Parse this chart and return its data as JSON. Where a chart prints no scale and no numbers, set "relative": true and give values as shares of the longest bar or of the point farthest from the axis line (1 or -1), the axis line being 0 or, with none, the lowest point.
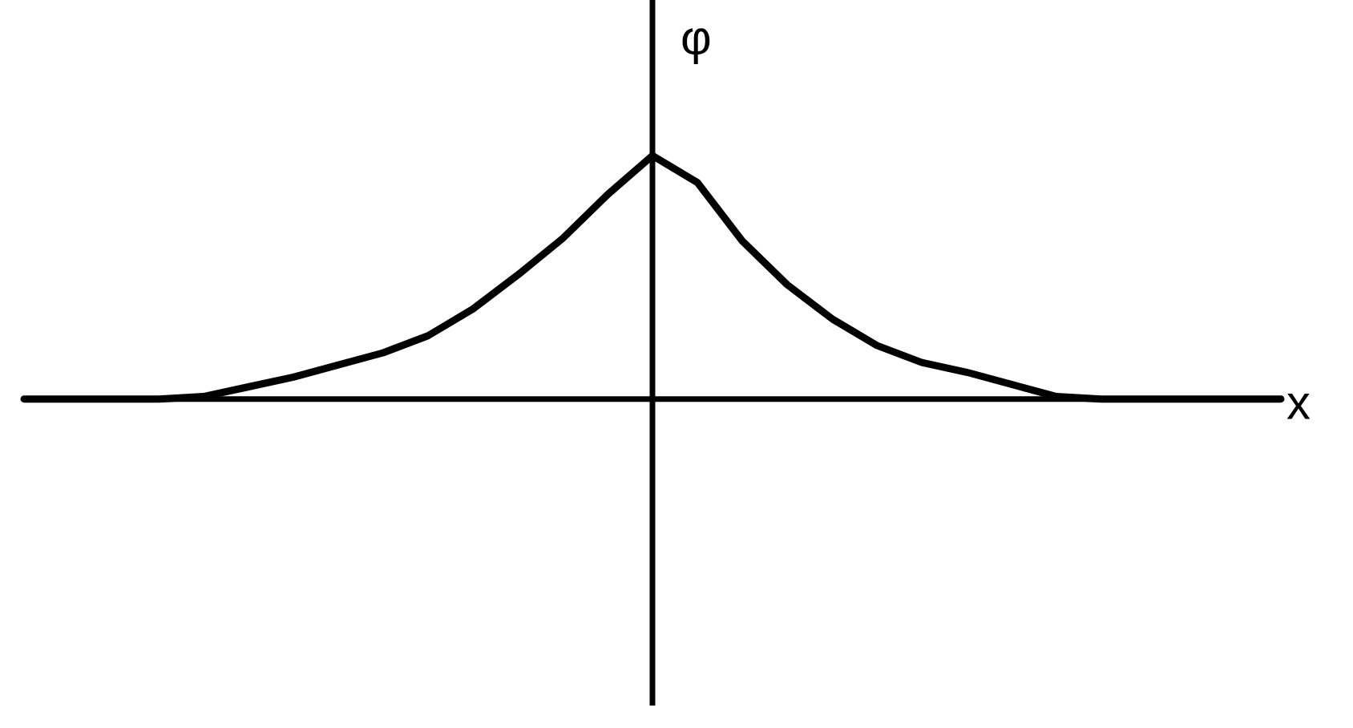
{
  "chart_data": {
    "type": "line",
    "relative": true,
    "xlabel": "x",
    "ylabel": "φ",
    "categories": [
      null,
      null,
      null,
      null,
      null,
      null,
      null,
      null,
      null,
      null,
      null,
      null,
      null,
      null,
      null,
      null,
      null,
      null,
      null,
      null,
      null,
      null,
      null,
      null,
      null,
      null,
      null,
      null,
      null
    ],
    "series": [
      {
        "color": "#000000",
        "values": [
          0,
          0,
          0,
          0,
          0.01,
          0.05,
          0.09,
          0.14,
          0.19,
          0.26,
          0.37,
          0.51,
          0.66,
          0.84,
          1,
          0.89,
          0.65,
          0.47,
          0.33,
          0.22,
          0.15,
          0.11,
          0.06,
          0.01,
          0,
          0,
          0,
          0,
          0
        ]
      }
    ],
    "marker": "none",
    "line_style": "solid"
  }
}
